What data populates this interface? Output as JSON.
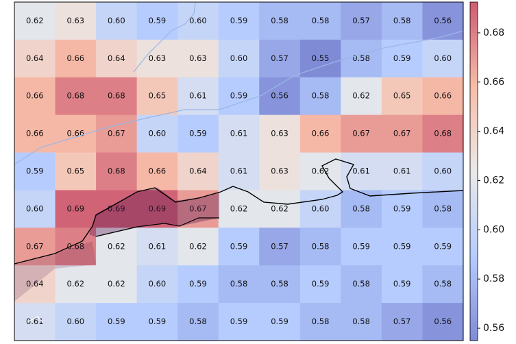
{
  "chart_data": {
    "type": "heatmap",
    "colormap": "coolwarm",
    "alpha": 0.65,
    "values": [
      [
        0.62,
        0.63,
        0.6,
        0.59,
        0.6,
        0.59,
        0.58,
        0.58,
        0.57,
        0.58,
        0.56
      ],
      [
        0.64,
        0.66,
        0.64,
        0.63,
        0.63,
        0.6,
        0.57,
        0.55,
        0.58,
        0.59,
        0.6
      ],
      [
        0.66,
        0.68,
        0.68,
        0.65,
        0.61,
        0.59,
        0.56,
        0.58,
        0.62,
        0.65,
        0.66
      ],
      [
        0.66,
        0.66,
        0.67,
        0.6,
        0.59,
        0.61,
        0.63,
        0.66,
        0.67,
        0.67,
        0.68
      ],
      [
        0.59,
        0.65,
        0.68,
        0.66,
        0.64,
        0.61,
        0.63,
        0.62,
        0.61,
        0.61,
        0.6
      ],
      [
        0.6,
        0.69,
        0.69,
        0.69,
        0.67,
        0.62,
        0.62,
        0.6,
        0.58,
        0.59,
        0.58
      ],
      [
        0.67,
        0.68,
        0.62,
        0.61,
        0.62,
        0.59,
        0.57,
        0.58,
        0.59,
        0.59,
        0.59
      ],
      [
        0.64,
        0.62,
        0.62,
        0.6,
        0.59,
        0.58,
        0.58,
        0.59,
        0.58,
        0.59,
        0.58
      ],
      [
        0.61,
        0.6,
        0.59,
        0.59,
        0.58,
        0.59,
        0.59,
        0.58,
        0.58,
        0.57,
        0.56
      ]
    ],
    "value_labels": [
      [
        "0.62",
        "0.63",
        "0.60",
        "0.59",
        "0.60",
        "0.59",
        "0.58",
        "0.58",
        "0.57",
        "0.58",
        "0.56"
      ],
      [
        "0.64",
        "0.66",
        "0.64",
        "0.63",
        "0.63",
        "0.60",
        "0.57",
        "0.55",
        "0.58",
        "0.59",
        "0.60"
      ],
      [
        "0.66",
        "0.68",
        "0.68",
        "0.65",
        "0.61",
        "0.59",
        "0.56",
        "0.58",
        "0.62",
        "0.65",
        "0.66"
      ],
      [
        "0.66",
        "0.66",
        "0.67",
        "0.60",
        "0.59",
        "0.61",
        "0.63",
        "0.66",
        "0.67",
        "0.67",
        "0.68"
      ],
      [
        "0.59",
        "0.65",
        "0.68",
        "0.66",
        "0.64",
        "0.61",
        "0.63",
        "0.62",
        "0.61",
        "0.61",
        "0.60"
      ],
      [
        "0.60",
        "0.69",
        "0.69",
        "0.69",
        "0.67",
        "0.62",
        "0.62",
        "0.60",
        "0.58",
        "0.59",
        "0.58"
      ],
      [
        "0.67",
        "0.68",
        "0.62",
        "0.61",
        "0.62",
        "0.59",
        "0.57",
        "0.58",
        "0.59",
        "0.59",
        "0.59"
      ],
      [
        "0.64",
        "0.62",
        "0.62",
        "0.60",
        "0.59",
        "0.58",
        "0.58",
        "0.59",
        "0.58",
        "0.59",
        "0.58"
      ],
      [
        "0.61",
        "0.60",
        "0.59",
        "0.59",
        "0.58",
        "0.59",
        "0.59",
        "0.58",
        "0.58",
        "0.57",
        "0.56"
      ]
    ],
    "zlim": [
      0.555,
      0.6925
    ],
    "zticks": [
      0.56,
      0.58,
      {
        "value": 0.6,
        "label": "0.60"
      },
      0.62,
      0.64,
      0.66,
      0.68
    ]
  }
}
